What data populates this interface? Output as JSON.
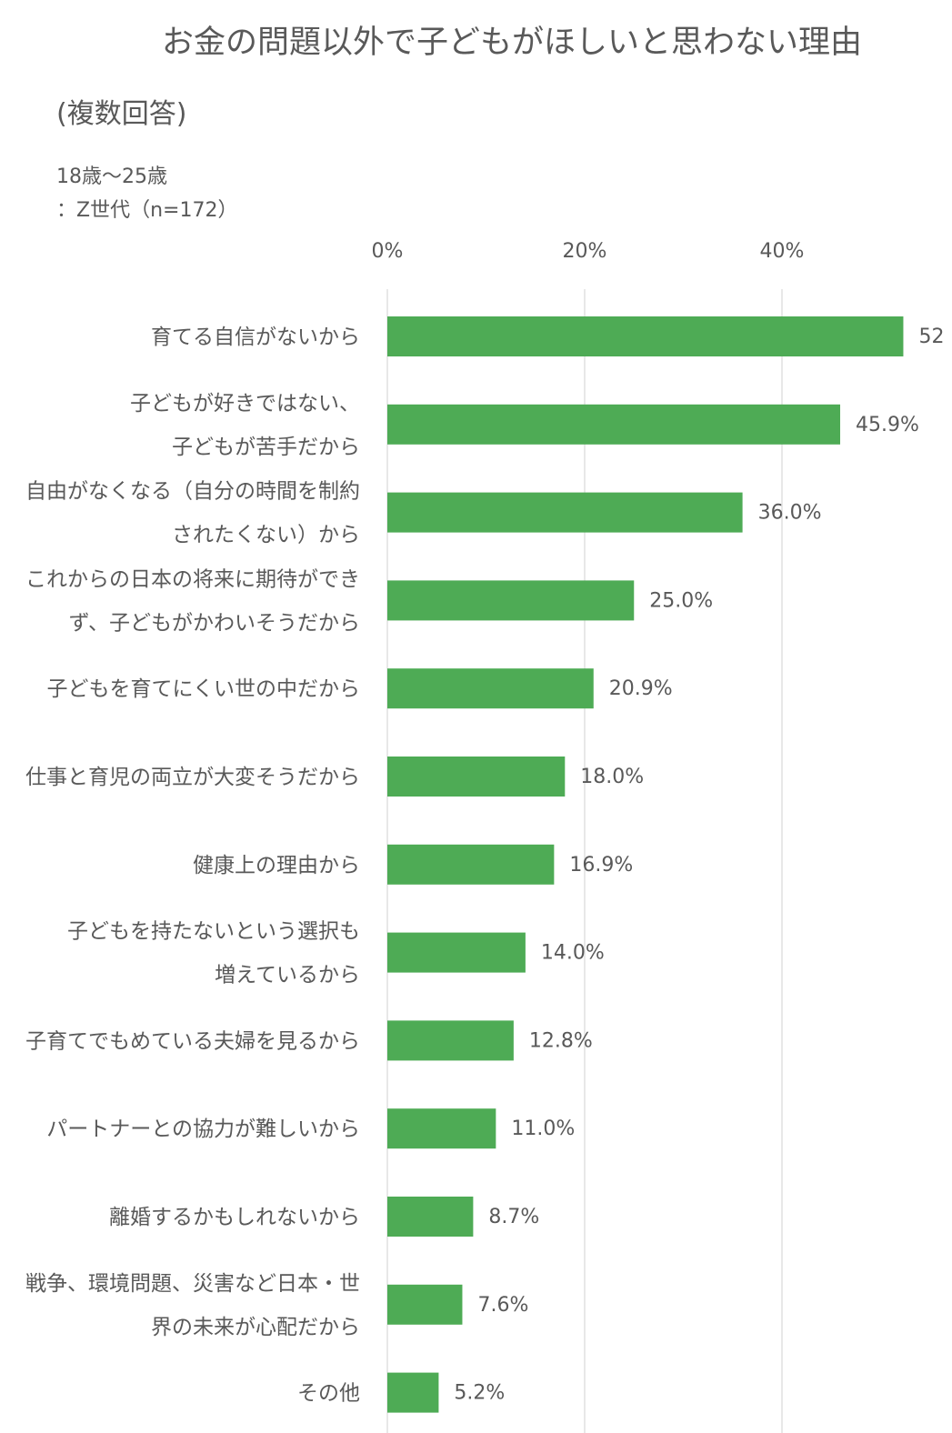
{
  "chart_data": {
    "type": "bar",
    "orientation": "horizontal",
    "title": "お金の問題以外で子どもがほしいと思わない理由",
    "subtitle": "(複数回答)",
    "respondents": [
      "18歳～25歳",
      "：Z世代（n=172）"
    ],
    "x_ticks": [
      "0%",
      "20%",
      "40%"
    ],
    "xlim": [
      0,
      60
    ],
    "gridlines": true,
    "bar_color": "#4eab55",
    "categories": [
      [
        "育てる自信がないから"
      ],
      [
        "子どもが好きではない、",
        "子どもが苦手だから"
      ],
      [
        "自由がなくなる（自分の時間を制約",
        "されたくない）から"
      ],
      [
        "これからの日本の将来に期待ができ",
        "ず、子どもがかわいそうだから"
      ],
      [
        "子どもを育てにくい世の中だから"
      ],
      [
        "仕事と育児の両立が大変そうだから"
      ],
      [
        "健康上の理由から"
      ],
      [
        "子どもを持たないという選択も",
        "増えているから"
      ],
      [
        "子育てでもめている夫婦を見るから"
      ],
      [
        "パートナーとの協力が難しいから"
      ],
      [
        "離婚するかもしれないから"
      ],
      [
        "戦争、環境問題、災害など日本・世",
        "界の未来が心配だから"
      ],
      [
        "その他"
      ]
    ],
    "values": [
      52.3,
      45.9,
      36.0,
      25.0,
      20.9,
      18.0,
      16.9,
      14.0,
      12.8,
      11.0,
      8.7,
      7.6,
      5.2
    ],
    "value_labels": [
      "52",
      "45.9%",
      "36.0%",
      "25.0%",
      "20.9%",
      "18.0%",
      "16.9%",
      "14.0%",
      "12.8%",
      "11.0%",
      "8.7%",
      "7.6%",
      "5.2%"
    ]
  }
}
